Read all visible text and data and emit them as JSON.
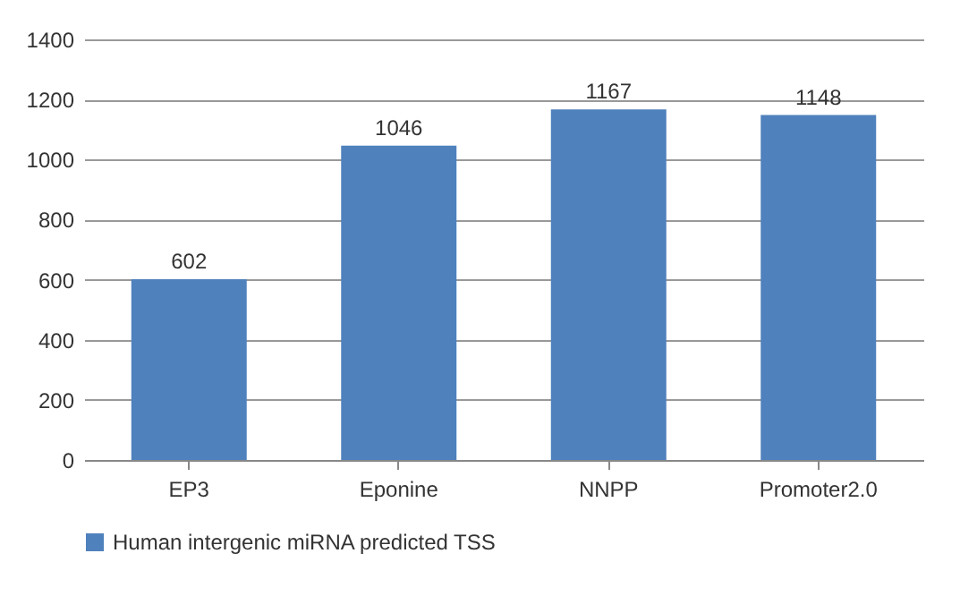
{
  "chart_data": {
    "type": "bar",
    "categories": [
      "EP3",
      "Eponine",
      "NNPP",
      "Promoter2.0"
    ],
    "series": [
      {
        "name": "Human intergenic miRNA predicted TSS",
        "color": "#4f81bd",
        "values": [
          602,
          1046,
          1167,
          1148
        ]
      }
    ],
    "ylim": [
      0,
      1400
    ],
    "yticks": [
      0,
      200,
      400,
      600,
      800,
      1000,
      1200,
      1400
    ],
    "grid": "y",
    "legend": "bottom",
    "data_labels": true
  }
}
